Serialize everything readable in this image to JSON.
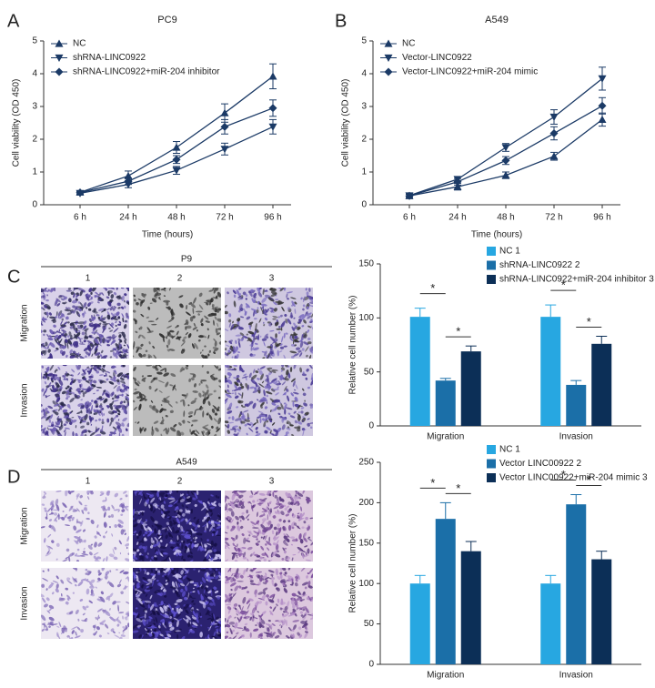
{
  "panel_labels": [
    "A",
    "B",
    "C",
    "D"
  ],
  "chart_data": [
    {
      "type": "line",
      "title": "PC9",
      "x_label": "Time (hours)",
      "y_label": "Cell viability (OD 450)",
      "categories": [
        "6 h",
        "24 h",
        "48 h",
        "72 h",
        "96 h"
      ],
      "ylim": [
        0,
        5
      ],
      "yticks": [
        0,
        1,
        2,
        3,
        4,
        5
      ],
      "legend": "upper left",
      "series": [
        {
          "name": "NC",
          "color": "#1b3a66",
          "marker": "triangle-up",
          "values": [
            0.38,
            0.88,
            1.75,
            2.8,
            3.92
          ],
          "errors": [
            0.05,
            0.15,
            0.18,
            0.28,
            0.38
          ]
        },
        {
          "name": "shRNA-LINC0922",
          "color": "#1b3a66",
          "marker": "triangle-down",
          "values": [
            0.35,
            0.62,
            1.05,
            1.7,
            2.38
          ],
          "errors": [
            0.05,
            0.1,
            0.12,
            0.18,
            0.22
          ]
        },
        {
          "name": "shRNA-LINC0922+miR-204 inhibitor",
          "color": "#1b3a66",
          "marker": "diamond",
          "values": [
            0.37,
            0.72,
            1.38,
            2.38,
            2.95
          ],
          "errors": [
            0.05,
            0.1,
            0.12,
            0.22,
            0.25
          ]
        }
      ]
    },
    {
      "type": "line",
      "title": "A549",
      "x_label": "Time (hours)",
      "y_label": "Cell viability (OD 450)",
      "categories": [
        "6 h",
        "24 h",
        "48 h",
        "72 h",
        "96 h"
      ],
      "ylim": [
        0,
        5
      ],
      "yticks": [
        0,
        1,
        2,
        3,
        4,
        5
      ],
      "legend": "upper left",
      "series": [
        {
          "name": "NC",
          "color": "#1b3a66",
          "marker": "triangle-up",
          "values": [
            0.27,
            0.55,
            0.9,
            1.48,
            2.6
          ],
          "errors": [
            0.05,
            0.1,
            0.1,
            0.12,
            0.2
          ]
        },
        {
          "name": "Vector-LINC0922",
          "color": "#1b3a66",
          "marker": "triangle-down",
          "values": [
            0.28,
            0.78,
            1.75,
            2.68,
            3.85
          ],
          "errors": [
            0.05,
            0.08,
            0.12,
            0.22,
            0.35
          ]
        },
        {
          "name": "Vector-LINC0922+miR-204 mimic",
          "color": "#1b3a66",
          "marker": "diamond",
          "values": [
            0.27,
            0.7,
            1.35,
            2.18,
            3.02
          ],
          "errors": [
            0.05,
            0.1,
            0.12,
            0.2,
            0.25
          ]
        }
      ]
    },
    {
      "type": "bar",
      "y_label": "Relative cell number (%)",
      "categories": [
        "Migration",
        "Invasion"
      ],
      "ylim": [
        0,
        150
      ],
      "yticks": [
        0,
        50,
        100,
        150
      ],
      "legend": "upper center",
      "annotations": [
        "*",
        "*",
        "*",
        "*"
      ],
      "series": [
        {
          "name": "NC 1",
          "color": "#27a7e1",
          "values": [
            101,
            101
          ],
          "errors": [
            8,
            11
          ]
        },
        {
          "name": "shRNA-LINC0922 2",
          "color": "#1b6fa8",
          "values": [
            42,
            38
          ],
          "errors": [
            2,
            4
          ]
        },
        {
          "name": "shRNA-LINC0922+miR-204 inhibitor 3",
          "color": "#0c2f57",
          "values": [
            69,
            76
          ],
          "errors": [
            5,
            7
          ]
        }
      ]
    },
    {
      "type": "bar",
      "y_label": "Relative cell number (%)",
      "categories": [
        "Migration",
        "Invasion"
      ],
      "ylim": [
        0,
        250
      ],
      "yticks": [
        0,
        50,
        100,
        150,
        200,
        250
      ],
      "legend": "upper center",
      "annotations": [
        "*",
        "*",
        "*",
        "*"
      ],
      "series": [
        {
          "name": "NC 1",
          "color": "#27a7e1",
          "values": [
            100,
            100
          ],
          "errors": [
            10,
            10
          ]
        },
        {
          "name": "Vector LINC00922 2",
          "color": "#1b6fa8",
          "values": [
            180,
            198
          ],
          "errors": [
            20,
            12
          ]
        },
        {
          "name": "Vector LINC00922+miR-204 mimic 3",
          "color": "#0c2f57",
          "values": [
            140,
            130
          ],
          "errors": [
            12,
            10
          ]
        }
      ]
    }
  ],
  "micrographs": [
    {
      "title": "P9",
      "columns": [
        "1",
        "2",
        "3"
      ],
      "rows": [
        "Migration",
        "Invasion"
      ]
    },
    {
      "title": "A549",
      "columns": [
        "1",
        "2",
        "3"
      ],
      "rows": [
        "Migration",
        "Invasion"
      ]
    }
  ]
}
